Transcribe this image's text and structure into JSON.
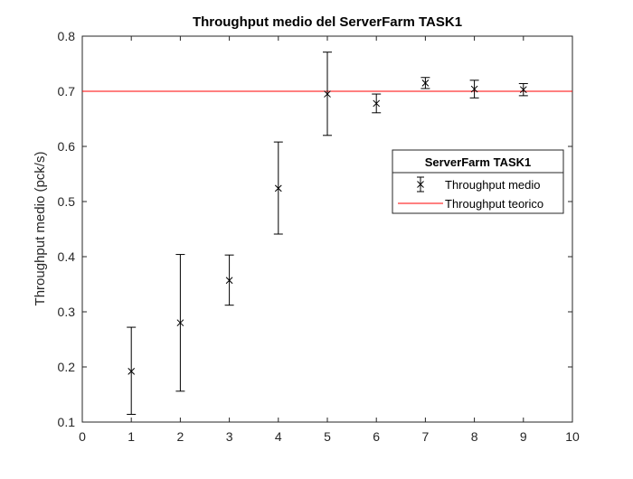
{
  "chart_data": {
    "type": "scatter",
    "title": "Throughput medio del ServerFarm TASK1",
    "xlabel": "",
    "ylabel": "Throughput medio (pck/s)",
    "xlim": [
      0,
      10
    ],
    "ylim": [
      0.1,
      0.8
    ],
    "xticks": [
      "0",
      "1",
      "2",
      "3",
      "4",
      "5",
      "6",
      "7",
      "8",
      "9",
      "10"
    ],
    "yticks": [
      "0.1",
      "0.2",
      "0.3",
      "0.4",
      "0.5",
      "0.6",
      "0.7",
      "0.8"
    ],
    "grid": false,
    "legend": {
      "title": "ServerFarm TASK1",
      "placement": "right",
      "entries": [
        "Throughput medio",
        "Throughput teorico"
      ]
    },
    "series": [
      {
        "name": "Throughput medio",
        "kind": "errorbar",
        "color": "#000000",
        "marker": "x",
        "x": [
          1,
          2,
          3,
          4,
          5,
          6,
          7,
          8,
          9
        ],
        "y": [
          0.192,
          0.28,
          0.357,
          0.524,
          0.695,
          0.678,
          0.715,
          0.704,
          0.703
        ],
        "lower": [
          0.114,
          0.156,
          0.312,
          0.441,
          0.62,
          0.661,
          0.705,
          0.688,
          0.692
        ],
        "upper": [
          0.272,
          0.404,
          0.403,
          0.608,
          0.771,
          0.695,
          0.725,
          0.72,
          0.714
        ]
      },
      {
        "name": "Throughput teorico",
        "kind": "hline",
        "color": "#ff0000",
        "y": 0.7
      }
    ]
  }
}
